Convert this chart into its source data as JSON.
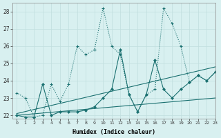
{
  "xlabel": "Humidex (Indice chaleur)",
  "background_color": "#d8f0f0",
  "grid_color": "#c0dede",
  "line_color": "#1a7070",
  "xlim": [
    -0.5,
    23
  ],
  "ylim": [
    21.8,
    28.5
  ],
  "yticks": [
    22,
    23,
    24,
    25,
    26,
    27,
    28
  ],
  "xticks": [
    0,
    1,
    2,
    3,
    4,
    5,
    6,
    7,
    8,
    9,
    10,
    11,
    12,
    13,
    14,
    15,
    16,
    17,
    18,
    19,
    20,
    21,
    22,
    23
  ],
  "lines": [
    {
      "x": [
        0,
        1,
        2,
        3,
        4,
        5,
        6,
        7,
        8,
        9,
        10,
        11,
        12,
        13,
        14,
        15,
        16,
        17,
        18,
        19,
        20,
        21,
        22,
        23
      ],
      "y": [
        23.3,
        23.0,
        21.9,
        22.0,
        23.8,
        22.8,
        23.8,
        26.0,
        25.5,
        25.8,
        28.2,
        26.0,
        25.5,
        23.2,
        22.2,
        23.2,
        23.5,
        28.2,
        27.3,
        26.0,
        23.9,
        24.3,
        24.0,
        24.5
      ]
    },
    {
      "x": [
        0,
        1,
        2,
        3,
        4,
        5,
        6,
        7,
        8,
        9,
        10,
        11,
        12,
        13,
        14,
        15,
        16,
        17,
        18,
        19,
        20,
        21,
        22,
        23
      ],
      "y": [
        22.0,
        21.9,
        21.9,
        23.8,
        22.0,
        22.2,
        22.2,
        22.2,
        22.3,
        22.5,
        23.0,
        23.5,
        25.8,
        23.2,
        22.2,
        23.2,
        25.2,
        23.5,
        23.0,
        23.5,
        23.9,
        24.3,
        24.0,
        24.5
      ]
    },
    {
      "x": [
        0,
        23
      ],
      "y": [
        22.0,
        23.0
      ]
    },
    {
      "x": [
        0,
        23
      ],
      "y": [
        22.1,
        24.8
      ]
    }
  ]
}
